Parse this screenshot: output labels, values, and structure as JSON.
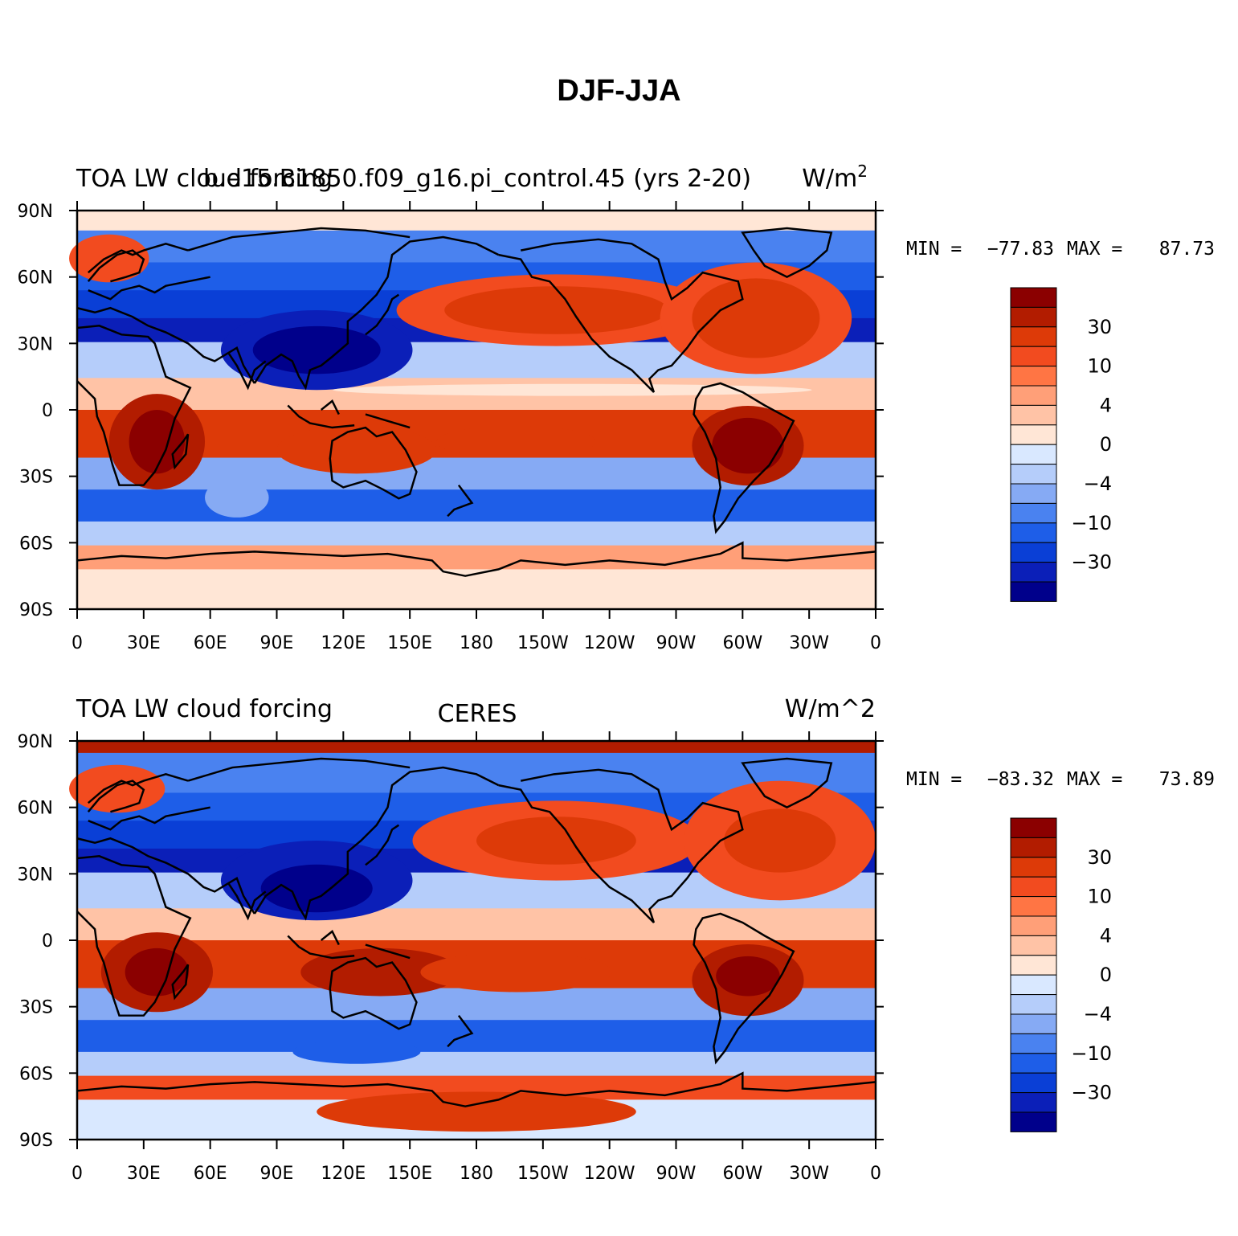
{
  "figure": {
    "title": "DJF-JJA"
  },
  "colors": {
    "levels": [
      "#00008b",
      "#0b1fb8",
      "#0a3fd6",
      "#1e5ee8",
      "#4a82f0",
      "#86aaf4",
      "#b5cdfa",
      "#d9e8ff",
      "#ffe6d6",
      "#ffc3a6",
      "#ff9f78",
      "#ff7544",
      "#f24b1f",
      "#dd3a08",
      "#b21c00",
      "#8b0000"
    ],
    "coast": "#000000"
  },
  "lon_ticks": [
    "0",
    "30E",
    "60E",
    "90E",
    "120E",
    "150E",
    "180",
    "150W",
    "120W",
    "90W",
    "60W",
    "30W",
    "0"
  ],
  "lat_ticks": [
    "90N",
    "60N",
    "30N",
    "0",
    "30S",
    "60S",
    "90S"
  ],
  "colorbar_labels": [
    "30",
    "10",
    "4",
    "0",
    "−4",
    "−10",
    "−30"
  ],
  "panels": [
    {
      "left_title": "TOA LW cloud forcing",
      "center_title": "b.e15.B1850.f09_g16.pi_control.45 (yrs 2-20)",
      "units": "W/m",
      "units_sup": "2",
      "min_label": "MIN =",
      "min_value": "−77.83",
      "max_label": "MAX =",
      "max_value": "87.73"
    },
    {
      "left_title": "TOA LW cloud forcing",
      "center_title": "CERES",
      "units": "W/m^2",
      "min_label": "MIN =",
      "min_value": "−83.32",
      "max_label": "MAX =",
      "max_value": "73.89"
    }
  ]
}
